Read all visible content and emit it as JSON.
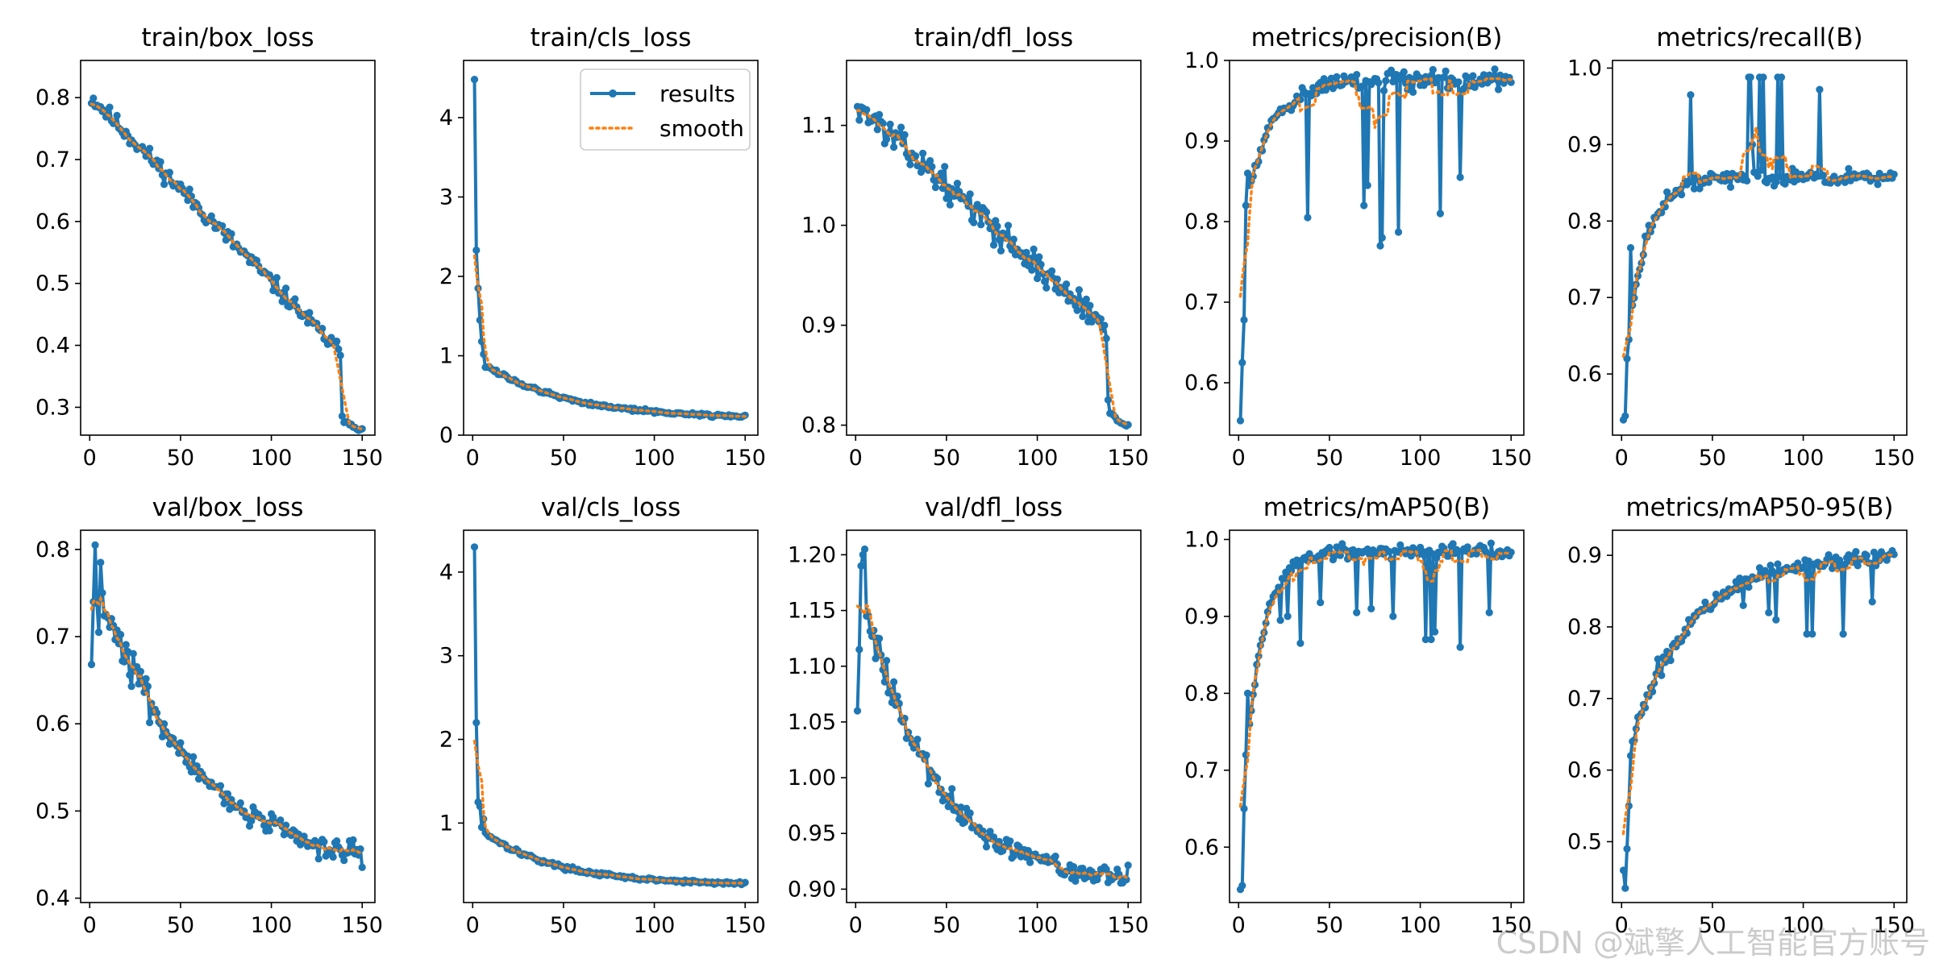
{
  "colors": {
    "results": "#1f77b4",
    "smooth": "#ff7f0e",
    "axis": "#000000"
  },
  "watermark": "CSDN @斌擎人工智能官方账号",
  "chart_data": [
    {
      "type": "line",
      "title": "train/box_loss",
      "xlim": [
        -5,
        157
      ],
      "ylim": [
        0.255,
        0.86
      ],
      "xticks": [
        0,
        50,
        100,
        150
      ],
      "yticks": [
        0.3,
        0.4,
        0.5,
        0.6,
        0.7,
        0.8
      ],
      "ytick_labels": [
        "0.3",
        "0.4",
        "0.5",
        "0.6",
        "0.7",
        "0.8"
      ],
      "legend": null,
      "gen": {
        "kind": "decay_log",
        "a": 0.8,
        "b": 0.385,
        "drop": 139,
        "after": 0.28,
        "noise": 0.018,
        "seed": 11
      }
    },
    {
      "type": "line",
      "title": "train/cls_loss",
      "xlim": [
        -5,
        157
      ],
      "ylim": [
        0,
        4.72
      ],
      "xticks": [
        0,
        50,
        100,
        150
      ],
      "yticks": [
        0,
        1,
        2,
        3,
        4
      ],
      "ytick_labels": [
        "0",
        "1",
        "2",
        "3",
        "4"
      ],
      "legend": {
        "position": "top-right",
        "entries": [
          "results",
          "smooth"
        ]
      },
      "gen": {
        "kind": "exp_decay",
        "start": [
          4.48,
          2.33,
          1.85,
          1.45,
          1.18,
          1.02
        ],
        "base": 0.9,
        "end": 0.21,
        "tau": 45,
        "noise": 0.025,
        "seed": 12
      }
    },
    {
      "type": "line",
      "title": "train/dfl_loss",
      "xlim": [
        -5,
        157
      ],
      "ylim": [
        0.79,
        1.165
      ],
      "xticks": [
        0,
        50,
        100,
        150
      ],
      "yticks": [
        0.8,
        0.9,
        1.0,
        1.1
      ],
      "ytick_labels": [
        "0.8",
        "0.9",
        "1.0",
        "1.1"
      ],
      "legend": null,
      "gen": {
        "kind": "decay_log",
        "a": 1.12,
        "b": 0.895,
        "drop": 139,
        "after": 0.815,
        "noise": 0.017,
        "seed": 13
      }
    },
    {
      "type": "line",
      "title": "metrics/precision(B)",
      "xlim": [
        -5,
        157
      ],
      "ylim": [
        0.535,
        1.0
      ],
      "xticks": [
        0,
        50,
        100,
        150
      ],
      "yticks": [
        0.6,
        0.7,
        0.8,
        0.9,
        1.0
      ],
      "ytick_labels": [
        "0.6",
        "0.7",
        "0.8",
        "0.9",
        "1.0"
      ],
      "legend": null,
      "gen": {
        "kind": "rise",
        "start": [
          0.553,
          0.625,
          0.678,
          0.82,
          0.86,
          0.845
        ],
        "plateau": 0.975,
        "tau": 14,
        "noise": 0.015,
        "dips": [
          [
            38,
            0.805
          ],
          [
            69,
            0.82
          ],
          [
            71,
            0.845
          ],
          [
            78,
            0.77
          ],
          [
            79,
            0.78
          ],
          [
            88,
            0.787
          ],
          [
            111,
            0.81
          ],
          [
            122,
            0.855
          ]
        ],
        "seed": 14
      }
    },
    {
      "type": "line",
      "title": "metrics/recall(B)",
      "xlim": [
        -5,
        157
      ],
      "ylim": [
        0.52,
        1.01
      ],
      "xticks": [
        0,
        50,
        100,
        150
      ],
      "yticks": [
        0.6,
        0.7,
        0.8,
        0.9,
        1.0
      ],
      "ytick_labels": [
        "0.6",
        "0.7",
        "0.8",
        "0.9",
        "1.0"
      ],
      "legend": null,
      "gen": {
        "kind": "rise",
        "start": [
          0.54,
          0.545,
          0.62,
          0.645,
          0.765,
          0.69
        ],
        "plateau": 0.857,
        "tau": 11,
        "noise": 0.012,
        "dips": [
          [
            38,
            0.965
          ],
          [
            70,
            0.988
          ],
          [
            71,
            0.988
          ],
          [
            72,
            0.9
          ],
          [
            76,
            0.988
          ],
          [
            78,
            0.988
          ],
          [
            86,
            0.988
          ],
          [
            88,
            0.988
          ],
          [
            109,
            0.972
          ]
        ],
        "seed": 15
      }
    },
    {
      "type": "line",
      "title": "val/box_loss",
      "xlim": [
        -5,
        157
      ],
      "ylim": [
        0.395,
        0.822
      ],
      "xticks": [
        0,
        50,
        100,
        150
      ],
      "yticks": [
        0.4,
        0.5,
        0.6,
        0.7,
        0.8
      ],
      "ytick_labels": [
        "0.4",
        "0.5",
        "0.6",
        "0.7",
        "0.8"
      ],
      "legend": null,
      "gen": {
        "kind": "exp_decay",
        "start": [
          0.668,
          0.74,
          0.805,
          0.738,
          0.705,
          0.785
        ],
        "base": 0.75,
        "end": 0.425,
        "tau": 55,
        "noise": 0.017,
        "seed": 16
      }
    },
    {
      "type": "line",
      "title": "val/cls_loss",
      "xlim": [
        -5,
        157
      ],
      "ylim": [
        0.05,
        4.5
      ],
      "xticks": [
        0,
        50,
        100,
        150
      ],
      "yticks": [
        1,
        2,
        3,
        4
      ],
      "ytick_labels": [
        "1",
        "2",
        "3",
        "4"
      ],
      "legend": null,
      "gen": {
        "kind": "exp_decay",
        "start": [
          4.3,
          2.2,
          1.25,
          1.2,
          0.95,
          1.05
        ],
        "base": 0.9,
        "end": 0.26,
        "tau": 40,
        "noise": 0.025,
        "seed": 17
      }
    },
    {
      "type": "line",
      "title": "val/dfl_loss",
      "xlim": [
        -5,
        157
      ],
      "ylim": [
        0.888,
        1.222
      ],
      "xticks": [
        0,
        50,
        100,
        150
      ],
      "yticks": [
        0.9,
        0.95,
        1.0,
        1.05,
        1.1,
        1.15,
        1.2
      ],
      "ytick_labels": [
        "0.90",
        "0.95",
        "1.00",
        "1.05",
        "1.10",
        "1.15",
        "1.20"
      ],
      "legend": null,
      "gen": {
        "kind": "exp_decay",
        "start": [
          1.06,
          1.115,
          1.19,
          1.2,
          1.205,
          1.145
        ],
        "base": 1.155,
        "end": 0.905,
        "tau": 38,
        "noise": 0.011,
        "seed": 18
      }
    },
    {
      "type": "line",
      "title": "metrics/mAP50(B)",
      "xlim": [
        -5,
        157
      ],
      "ylim": [
        0.528,
        1.012
      ],
      "xticks": [
        0,
        50,
        100,
        150
      ],
      "yticks": [
        0.6,
        0.7,
        0.8,
        0.9,
        1.0
      ],
      "ytick_labels": [
        "0.6",
        "0.7",
        "0.8",
        "0.9",
        "1.0"
      ],
      "legend": null,
      "gen": {
        "kind": "rise",
        "start": [
          0.545,
          0.55,
          0.65,
          0.72,
          0.8,
          0.76
        ],
        "plateau": 0.985,
        "tau": 10,
        "noise": 0.012,
        "dips": [
          [
            23,
            0.895
          ],
          [
            27,
            0.9
          ],
          [
            34,
            0.865
          ],
          [
            45,
            0.918
          ],
          [
            65,
            0.905
          ],
          [
            73,
            0.91
          ],
          [
            85,
            0.9
          ],
          [
            103,
            0.87
          ],
          [
            106,
            0.87
          ],
          [
            108,
            0.88
          ],
          [
            122,
            0.86
          ],
          [
            138,
            0.905
          ]
        ],
        "seed": 19
      }
    },
    {
      "type": "line",
      "title": "metrics/mAP50-95(B)",
      "xlim": [
        -5,
        157
      ],
      "ylim": [
        0.415,
        0.935
      ],
      "xticks": [
        0,
        50,
        100,
        150
      ],
      "yticks": [
        0.5,
        0.6,
        0.7,
        0.8,
        0.9
      ],
      "ytick_labels": [
        "0.5",
        "0.6",
        "0.7",
        "0.8",
        "0.9"
      ],
      "legend": null,
      "gen": {
        "kind": "rise",
        "start": [
          0.46,
          0.435,
          0.49,
          0.55,
          0.62,
          0.64
        ],
        "plateau": 0.9,
        "tau": 32,
        "noise": 0.012,
        "dips": [
          [
            20,
            0.755
          ],
          [
            23,
            0.758
          ],
          [
            67,
            0.83
          ],
          [
            81,
            0.82
          ],
          [
            85,
            0.81
          ],
          [
            102,
            0.79
          ],
          [
            105,
            0.79
          ],
          [
            122,
            0.79
          ],
          [
            138,
            0.835
          ]
        ],
        "seed": 20
      }
    }
  ]
}
